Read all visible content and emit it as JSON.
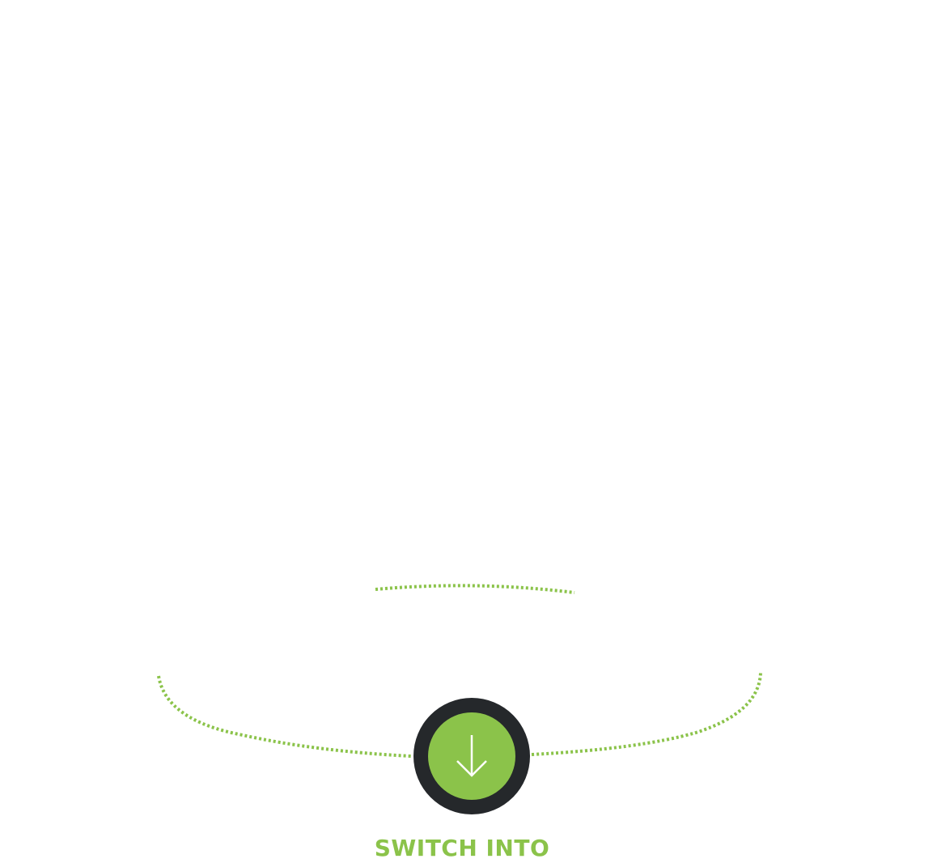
{
  "theme": {
    "accent": "#8bc34a",
    "button_ring": "#25282b",
    "background": "#ffffff",
    "icon_color": "#ffffff"
  },
  "switch": {
    "label": "SWITCH INTO",
    "icon": "arrow-down-icon"
  }
}
